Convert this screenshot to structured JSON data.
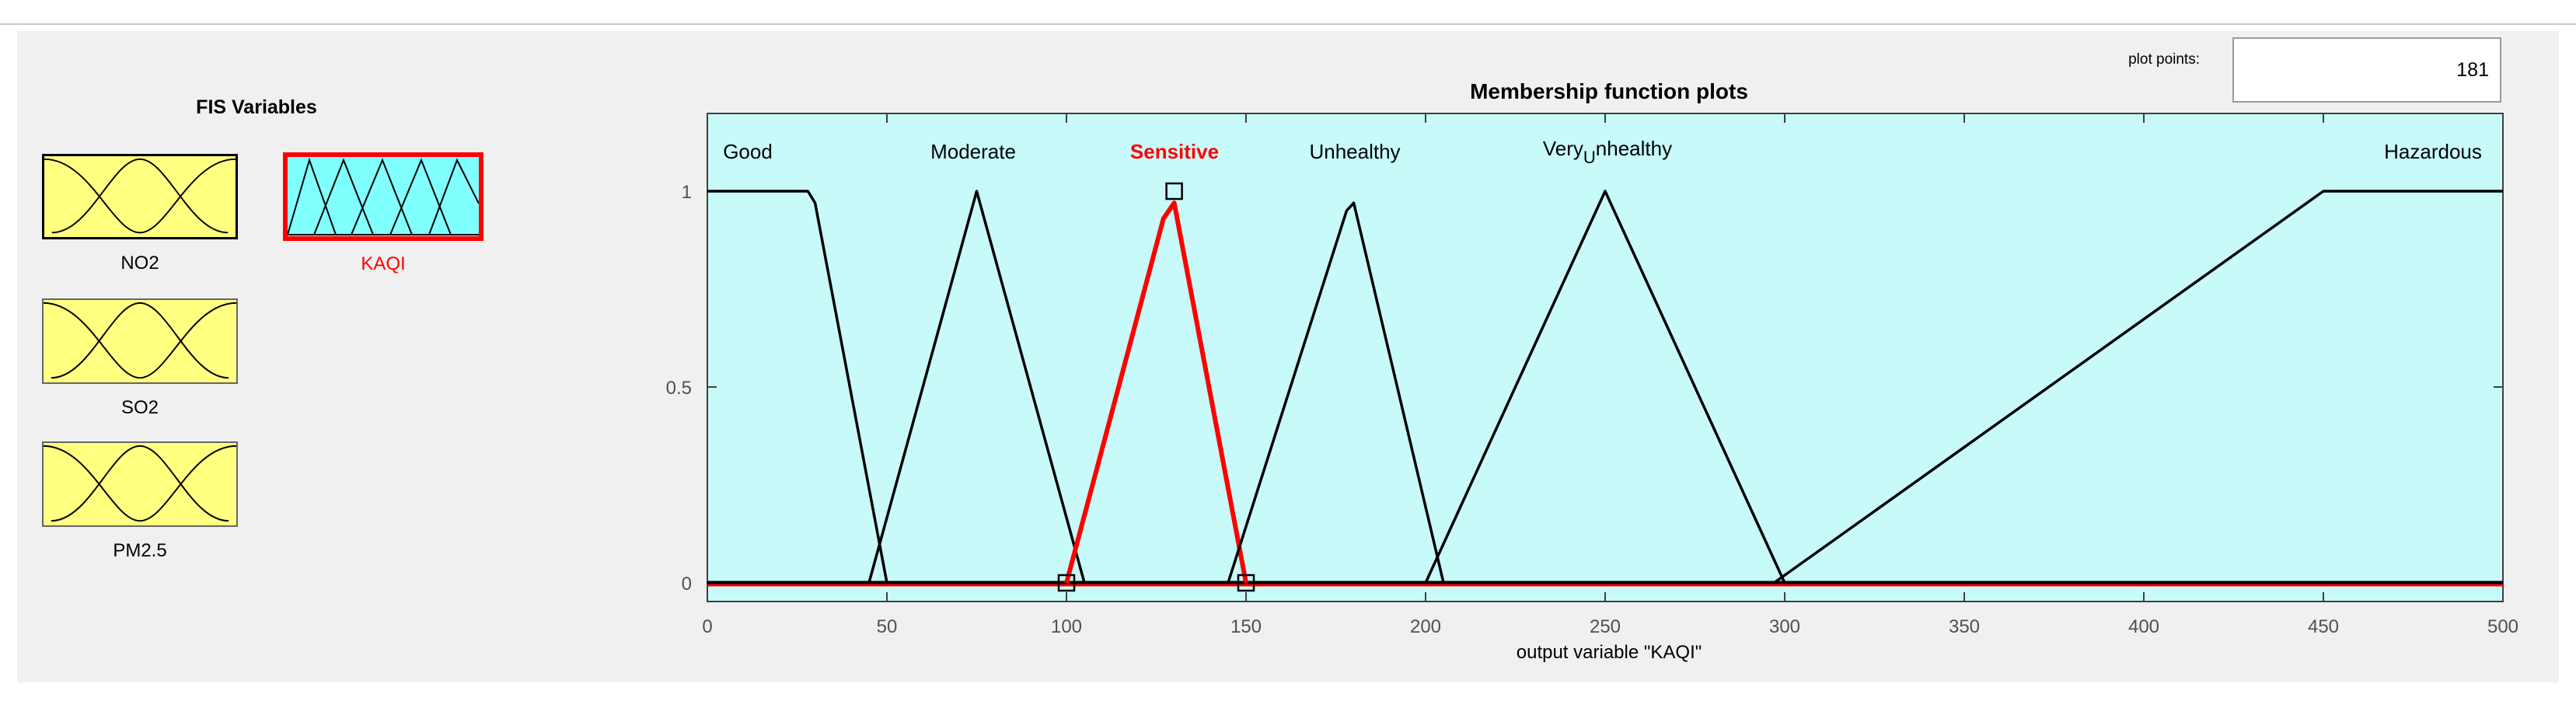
{
  "fis": {
    "title": "FIS Variables",
    "inputs": [
      {
        "name": "NO2"
      },
      {
        "name": "SO2"
      },
      {
        "name": "PM2.5"
      }
    ],
    "output": {
      "name": "KAQI",
      "selected": true
    }
  },
  "plot_points": {
    "label": "plot points:",
    "value": "181"
  },
  "colors": {
    "input_fill": "#ffff80",
    "output_fill": "#80ffff",
    "plot_bg": "#c8fafa",
    "selected": "#ff0000",
    "curve": "#000000",
    "panel": "#f0f0f0"
  },
  "chart_data": {
    "type": "line",
    "title": "Membership function plots",
    "xlabel": "output variable \"KAQI\"",
    "xlim": [
      0,
      500
    ],
    "ylim": [
      -0.05,
      1.2
    ],
    "x_ticks": [
      0,
      50,
      100,
      150,
      200,
      250,
      300,
      350,
      400,
      450,
      500
    ],
    "y_ticks": [
      0,
      0.5,
      1
    ],
    "series": [
      {
        "name": "Good",
        "points": [
          [
            0,
            1
          ],
          [
            28,
            1
          ],
          [
            30,
            0.97
          ],
          [
            50,
            0
          ]
        ]
      },
      {
        "name": "Moderate",
        "points": [
          [
            45,
            0
          ],
          [
            75,
            1
          ],
          [
            105,
            0
          ]
        ]
      },
      {
        "name": "Sensitive",
        "selected": true,
        "points": [
          [
            100,
            0
          ],
          [
            127,
            0.93
          ],
          [
            130,
            0.97
          ],
          [
            150,
            0
          ]
        ]
      },
      {
        "name": "Unhealthy",
        "points": [
          [
            145,
            0
          ],
          [
            178,
            0.95
          ],
          [
            180,
            0.97
          ],
          [
            205,
            0
          ]
        ]
      },
      {
        "name": "VeryUnhealthy",
        "label_main": "Very",
        "label_sub": "U",
        "label_rest": "nhealthy",
        "points": [
          [
            200,
            0
          ],
          [
            250,
            1
          ],
          [
            300,
            0
          ]
        ]
      },
      {
        "name": "Hazardous",
        "points": [
          [
            297,
            0
          ],
          [
            450,
            1
          ],
          [
            500,
            1
          ]
        ]
      }
    ],
    "baselines": [
      {
        "y": 0
      }
    ],
    "handles": [
      [
        100,
        0
      ],
      [
        130,
        1
      ],
      [
        150,
        0
      ]
    ]
  }
}
